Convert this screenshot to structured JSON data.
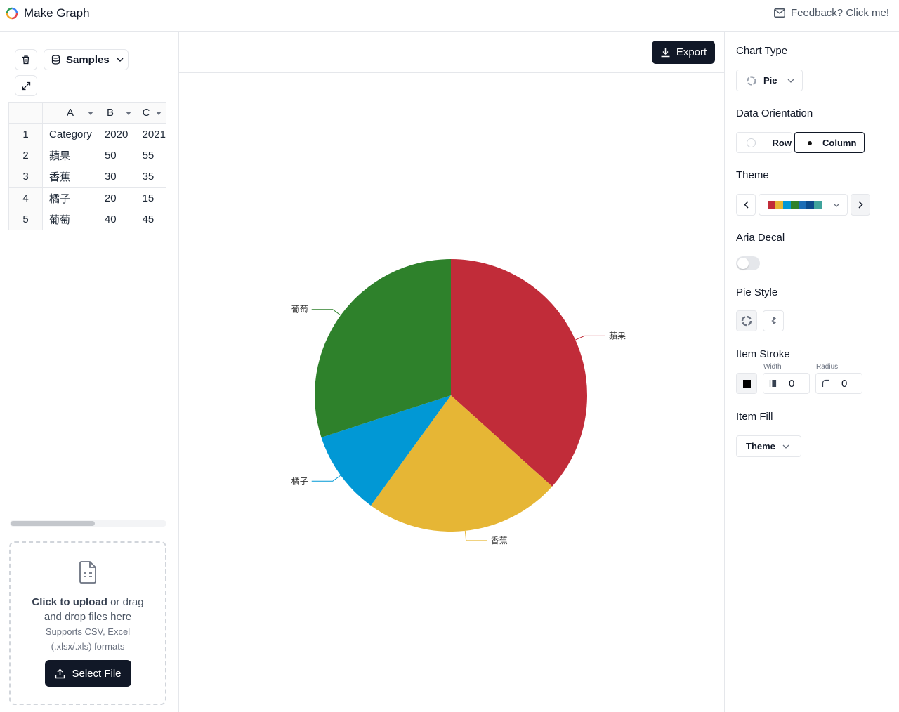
{
  "header": {
    "app_title": "Make Graph",
    "feedback_label": "Feedback? Click me!"
  },
  "left_panel": {
    "samples_label": "Samples",
    "sheet": {
      "columns": [
        "A",
        "B",
        "C"
      ],
      "rows": [
        {
          "num": "1",
          "cells": [
            "Category",
            "2020",
            "2021"
          ]
        },
        {
          "num": "2",
          "cells": [
            "蘋果",
            "50",
            "55"
          ]
        },
        {
          "num": "3",
          "cells": [
            "香蕉",
            "30",
            "35"
          ]
        },
        {
          "num": "4",
          "cells": [
            "橘子",
            "20",
            "15"
          ]
        },
        {
          "num": "5",
          "cells": [
            "葡萄",
            "40",
            "45"
          ]
        }
      ]
    },
    "upload": {
      "click_text": "Click to upload",
      "drag_text": " or drag",
      "drop_text": "and drop files here",
      "supports_line1": "Supports CSV, Excel",
      "supports_line2": "(.xlsx/.xls) formats",
      "select_file_label": "Select File"
    }
  },
  "center": {
    "export_label": "Export"
  },
  "chart_data": {
    "type": "pie",
    "categories": [
      "蘋果",
      "香蕉",
      "橘子",
      "葡萄"
    ],
    "values": [
      55,
      35,
      15,
      45
    ],
    "colors": [
      "#c12c39",
      "#e6b635",
      "#0198d5",
      "#2e812b"
    ],
    "title": ""
  },
  "right_panel": {
    "chart_type": {
      "label": "Chart Type",
      "value": "Pie"
    },
    "orientation": {
      "label": "Data Orientation",
      "row_label": "Row",
      "column_label": "Column",
      "selected": "Column"
    },
    "theme": {
      "label": "Theme",
      "swatches": [
        "#c12c39",
        "#e6b635",
        "#0198d5",
        "#2e812b",
        "#1b6cb5",
        "#0b4a8b",
        "#3fa39c"
      ]
    },
    "aria_decal": {
      "label": "Aria Decal",
      "enabled": false
    },
    "pie_style": {
      "label": "Pie Style"
    },
    "item_stroke": {
      "label": "Item Stroke",
      "width_label": "Width",
      "width_value": "0",
      "radius_label": "Radius",
      "radius_value": "0",
      "color": "#000000"
    },
    "item_fill": {
      "label": "Item Fill",
      "value": "Theme"
    }
  }
}
